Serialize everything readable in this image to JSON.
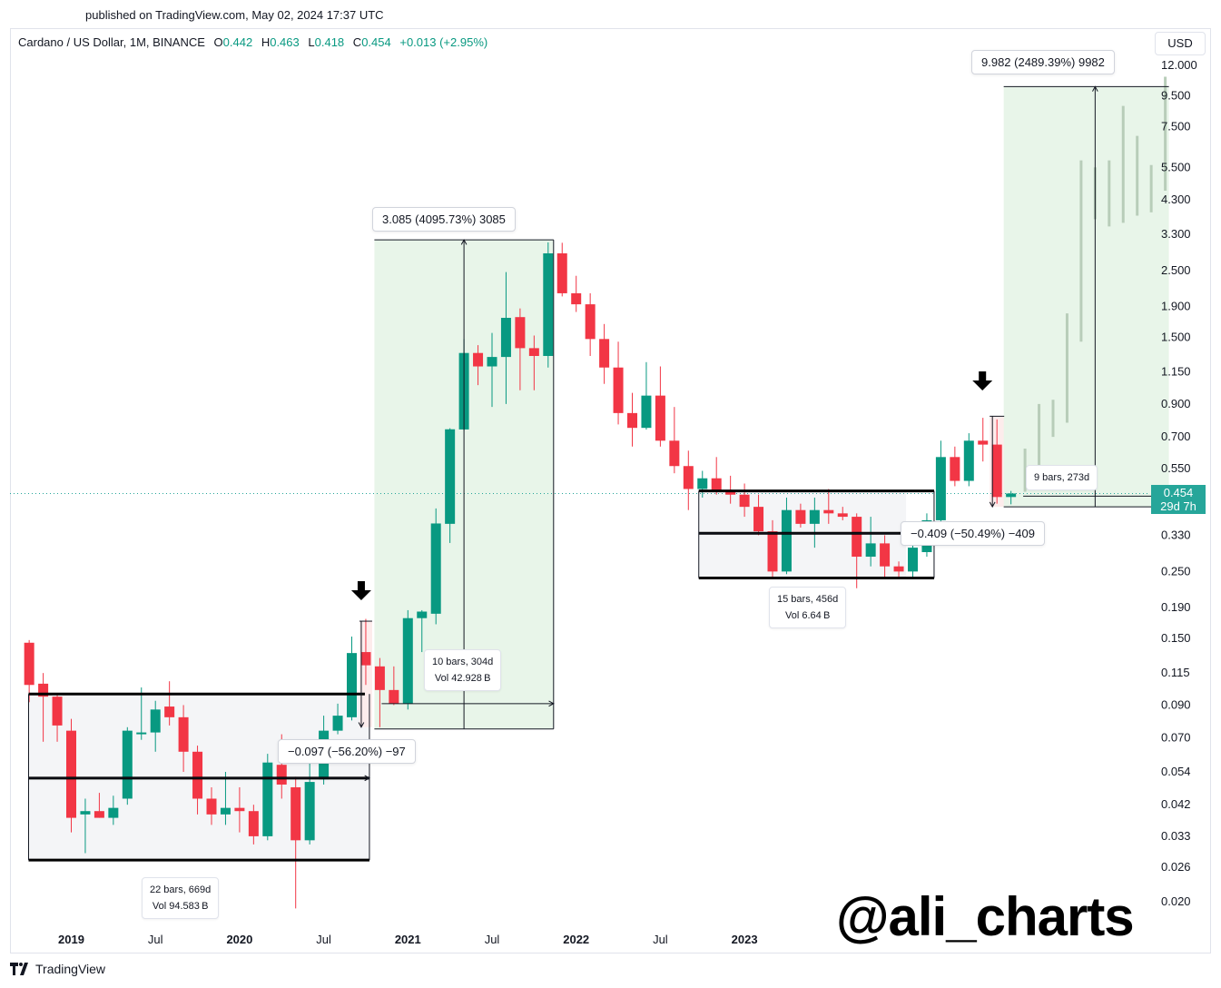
{
  "header": {
    "published": "published on TradingView.com, May 02, 2024 17:37 UTC"
  },
  "legend": {
    "symbol": "Cardano / US Dollar, 1M, BINANCE",
    "open_label": "O",
    "open": "0.442",
    "high_label": "H",
    "high": "0.463",
    "low_label": "L",
    "low": "0.418",
    "close_label": "C",
    "close": "0.454",
    "change": "+0.013 (+2.95%)"
  },
  "currency": "USD",
  "price_badge": {
    "price": "0.454",
    "countdown": "29d 7h"
  },
  "watermark": "@ali_charts",
  "footer": {
    "logo_text": "TradingView"
  },
  "colors": {
    "up": "#089981",
    "down": "#f23645",
    "long_zone": "#e8f5e9",
    "short_zone": "#fdecec",
    "range_zone": "#f4f5f7"
  },
  "chart_data": {
    "type": "candlestick",
    "scale": "log",
    "y_ticks": [
      "12.000",
      "9.500",
      "7.500",
      "5.500",
      "4.300",
      "3.300",
      "2.500",
      "1.900",
      "1.500",
      "1.150",
      "0.900",
      "0.700",
      "0.550",
      "0.330",
      "0.250",
      "0.190",
      "0.150",
      "0.115",
      "0.090",
      "0.070",
      "0.054",
      "0.042",
      "0.033",
      "0.026",
      "0.020"
    ],
    "x_ticks": [
      {
        "label": "2019",
        "bold": true,
        "month": 1
      },
      {
        "label": "Jul",
        "bold": false,
        "month": 7
      },
      {
        "label": "2020",
        "bold": true,
        "month": 13
      },
      {
        "label": "Jul",
        "bold": false,
        "month": 19
      },
      {
        "label": "2021",
        "bold": true,
        "month": 25
      },
      {
        "label": "Jul",
        "bold": false,
        "month": 31
      },
      {
        "label": "2022",
        "bold": true,
        "month": 37
      },
      {
        "label": "Jul",
        "bold": false,
        "month": 43
      },
      {
        "label": "2023",
        "bold": true,
        "month": 49
      }
    ],
    "candles": [
      {
        "m": -2,
        "o": 0.145,
        "h": 0.148,
        "l": 0.092,
        "c": 0.105
      },
      {
        "m": -1,
        "o": 0.106,
        "h": 0.115,
        "l": 0.068,
        "c": 0.096
      },
      {
        "m": 0,
        "o": 0.096,
        "h": 0.098,
        "l": 0.068,
        "c": 0.077
      },
      {
        "m": 1,
        "o": 0.074,
        "h": 0.081,
        "l": 0.034,
        "c": 0.038
      },
      {
        "m": 2,
        "o": 0.039,
        "h": 0.044,
        "l": 0.029,
        "c": 0.04
      },
      {
        "m": 3,
        "o": 0.04,
        "h": 0.046,
        "l": 0.038,
        "c": 0.038
      },
      {
        "m": 4,
        "o": 0.038,
        "h": 0.045,
        "l": 0.036,
        "c": 0.041
      },
      {
        "m": 5,
        "o": 0.044,
        "h": 0.076,
        "l": 0.042,
        "c": 0.074
      },
      {
        "m": 6,
        "o": 0.072,
        "h": 0.103,
        "l": 0.069,
        "c": 0.073
      },
      {
        "m": 7,
        "o": 0.073,
        "h": 0.093,
        "l": 0.063,
        "c": 0.087
      },
      {
        "m": 8,
        "o": 0.089,
        "h": 0.108,
        "l": 0.077,
        "c": 0.082
      },
      {
        "m": 9,
        "o": 0.082,
        "h": 0.09,
        "l": 0.054,
        "c": 0.063
      },
      {
        "m": 10,
        "o": 0.063,
        "h": 0.066,
        "l": 0.039,
        "c": 0.044
      },
      {
        "m": 11,
        "o": 0.044,
        "h": 0.048,
        "l": 0.036,
        "c": 0.039
      },
      {
        "m": 12,
        "o": 0.039,
        "h": 0.054,
        "l": 0.036,
        "c": 0.041
      },
      {
        "m": 13,
        "o": 0.041,
        "h": 0.048,
        "l": 0.034,
        "c": 0.04
      },
      {
        "m": 14,
        "o": 0.04,
        "h": 0.042,
        "l": 0.031,
        "c": 0.033
      },
      {
        "m": 15,
        "o": 0.033,
        "h": 0.062,
        "l": 0.032,
        "c": 0.058
      },
      {
        "m": 16,
        "o": 0.057,
        "h": 0.072,
        "l": 0.044,
        "c": 0.049
      },
      {
        "m": 17,
        "o": 0.048,
        "h": 0.052,
        "l": 0.019,
        "c": 0.032
      },
      {
        "m": 18,
        "o": 0.032,
        "h": 0.061,
        "l": 0.031,
        "c": 0.05
      },
      {
        "m": 19,
        "o": 0.051,
        "h": 0.083,
        "l": 0.049,
        "c": 0.074
      },
      {
        "m": 20,
        "o": 0.074,
        "h": 0.091,
        "l": 0.072,
        "c": 0.083
      },
      {
        "m": 21,
        "o": 0.082,
        "h": 0.152,
        "l": 0.08,
        "c": 0.134
      },
      {
        "m": 22,
        "o": 0.135,
        "h": 0.174,
        "l": 0.105,
        "c": 0.122
      },
      {
        "m": 23,
        "o": 0.121,
        "h": 0.129,
        "l": 0.076,
        "c": 0.101
      },
      {
        "m": 24,
        "o": 0.101,
        "h": 0.121,
        "l": 0.09,
        "c": 0.091
      },
      {
        "m": 25,
        "o": 0.091,
        "h": 0.186,
        "l": 0.087,
        "c": 0.175
      },
      {
        "m": 26,
        "o": 0.175,
        "h": 0.186,
        "l": 0.135,
        "c": 0.184
      },
      {
        "m": 27,
        "o": 0.181,
        "h": 0.405,
        "l": 0.167,
        "c": 0.361
      },
      {
        "m": 28,
        "o": 0.36,
        "h": 0.748,
        "l": 0.311,
        "c": 0.742
      },
      {
        "m": 29,
        "o": 0.741,
        "h": 1.48,
        "l": 0.734,
        "c": 1.33
      },
      {
        "m": 30,
        "o": 1.33,
        "h": 1.412,
        "l": 1.04,
        "c": 1.2
      },
      {
        "m": 31,
        "o": 1.2,
        "h": 1.55,
        "l": 0.88,
        "c": 1.29
      },
      {
        "m": 32,
        "o": 1.29,
        "h": 2.47,
        "l": 0.9,
        "c": 1.74
      },
      {
        "m": 33,
        "o": 1.75,
        "h": 1.87,
        "l": 1.0,
        "c": 1.38
      },
      {
        "m": 34,
        "o": 1.38,
        "h": 1.52,
        "l": 1.0,
        "c": 1.3
      },
      {
        "m": 35,
        "o": 1.3,
        "h": 3.1,
        "l": 1.19,
        "c": 2.85
      },
      {
        "m": 36,
        "o": 2.85,
        "h": 3.09,
        "l": 2.05,
        "c": 2.1
      },
      {
        "m": 37,
        "o": 2.1,
        "h": 2.4,
        "l": 1.82,
        "c": 1.93
      },
      {
        "m": 38,
        "o": 1.93,
        "h": 2.1,
        "l": 1.3,
        "c": 1.48
      },
      {
        "m": 39,
        "o": 1.48,
        "h": 1.66,
        "l": 1.05,
        "c": 1.19
      },
      {
        "m": 40,
        "o": 1.19,
        "h": 1.45,
        "l": 0.77,
        "c": 0.84
      },
      {
        "m": 41,
        "o": 0.84,
        "h": 0.98,
        "l": 0.65,
        "c": 0.75
      },
      {
        "m": 42,
        "o": 0.75,
        "h": 1.24,
        "l": 0.74,
        "c": 0.96
      },
      {
        "m": 43,
        "o": 0.96,
        "h": 1.2,
        "l": 0.65,
        "c": 0.68
      },
      {
        "m": 44,
        "o": 0.68,
        "h": 0.88,
        "l": 0.53,
        "c": 0.56
      },
      {
        "m": 45,
        "o": 0.56,
        "h": 0.63,
        "l": 0.4,
        "c": 0.47
      },
      {
        "m": 46,
        "o": 0.47,
        "h": 0.54,
        "l": 0.44,
        "c": 0.51
      },
      {
        "m": 47,
        "o": 0.51,
        "h": 0.6,
        "l": 0.45,
        "c": 0.46
      },
      {
        "m": 48,
        "o": 0.46,
        "h": 0.52,
        "l": 0.42,
        "c": 0.45
      },
      {
        "m": 49,
        "o": 0.45,
        "h": 0.49,
        "l": 0.38,
        "c": 0.41
      },
      {
        "m": 50,
        "o": 0.41,
        "h": 0.45,
        "l": 0.33,
        "c": 0.34
      },
      {
        "m": 51,
        "o": 0.34,
        "h": 0.37,
        "l": 0.24,
        "c": 0.25
      },
      {
        "m": 52,
        "o": 0.25,
        "h": 0.44,
        "l": 0.245,
        "c": 0.4
      },
      {
        "m": 53,
        "o": 0.4,
        "h": 0.42,
        "l": 0.35,
        "c": 0.36
      },
      {
        "m": 54,
        "o": 0.36,
        "h": 0.44,
        "l": 0.3,
        "c": 0.4
      },
      {
        "m": 55,
        "o": 0.4,
        "h": 0.47,
        "l": 0.36,
        "c": 0.39
      },
      {
        "m": 56,
        "o": 0.39,
        "h": 0.41,
        "l": 0.37,
        "c": 0.38
      },
      {
        "m": 57,
        "o": 0.38,
        "h": 0.39,
        "l": 0.22,
        "c": 0.28
      },
      {
        "m": 58,
        "o": 0.28,
        "h": 0.38,
        "l": 0.26,
        "c": 0.31
      },
      {
        "m": 59,
        "o": 0.31,
        "h": 0.33,
        "l": 0.24,
        "c": 0.26
      },
      {
        "m": 60,
        "o": 0.26,
        "h": 0.27,
        "l": 0.24,
        "c": 0.25
      },
      {
        "m": 61,
        "o": 0.25,
        "h": 0.32,
        "l": 0.24,
        "c": 0.3
      },
      {
        "m": 62,
        "o": 0.29,
        "h": 0.39,
        "l": 0.28,
        "c": 0.37
      },
      {
        "m": 63,
        "o": 0.37,
        "h": 0.68,
        "l": 0.35,
        "c": 0.6
      },
      {
        "m": 64,
        "o": 0.6,
        "h": 0.65,
        "l": 0.48,
        "c": 0.5
      },
      {
        "m": 65,
        "o": 0.5,
        "h": 0.72,
        "l": 0.48,
        "c": 0.68
      },
      {
        "m": 66,
        "o": 0.68,
        "h": 0.81,
        "l": 0.58,
        "c": 0.66
      },
      {
        "m": 67,
        "o": 0.66,
        "h": 0.8,
        "l": 0.42,
        "c": 0.442
      },
      {
        "m": 68,
        "o": 0.442,
        "h": 0.463,
        "l": 0.418,
        "c": 0.454
      }
    ],
    "ghost_projection": [
      {
        "m": 69,
        "l": 0.46,
        "h": 0.64
      },
      {
        "m": 70,
        "l": 0.53,
        "h": 0.9
      },
      {
        "m": 71,
        "l": 0.7,
        "h": 0.93
      },
      {
        "m": 72,
        "l": 0.78,
        "h": 1.8
      },
      {
        "m": 73,
        "l": 1.45,
        "h": 5.8
      },
      {
        "m": 74,
        "l": 3.7,
        "h": 5.5
      },
      {
        "m": 75,
        "l": 3.5,
        "h": 5.8
      },
      {
        "m": 76,
        "l": 3.6,
        "h": 8.8
      },
      {
        "m": 77,
        "l": 3.8,
        "h": 7.0
      },
      {
        "m": 78,
        "l": 3.9,
        "h": 5.6
      },
      {
        "m": 79,
        "l": 4.6,
        "h": 11.0
      }
    ],
    "current_price": 0.454,
    "annotations": {
      "measure_top_2021": "3.085 (4095.73%) 3085",
      "measure_top_2024": "9.982 (2489.39%) 9982",
      "measure_drop_2020": "−0.097 (−56.20%) −97",
      "measure_drop_2023": "−0.409 (−50.49%) −409",
      "range_2019": {
        "line1": "22 bars, 669d",
        "line2": "Vol 94.583 B"
      },
      "range_2023": {
        "line1": "15 bars, 456d",
        "line2": "Vol 6.64 B"
      },
      "range_2021": {
        "line1": "10 bars, 304d",
        "line2": "Vol 42.928 B"
      },
      "range_2024": {
        "line1": "9 bars, 273d"
      }
    }
  }
}
